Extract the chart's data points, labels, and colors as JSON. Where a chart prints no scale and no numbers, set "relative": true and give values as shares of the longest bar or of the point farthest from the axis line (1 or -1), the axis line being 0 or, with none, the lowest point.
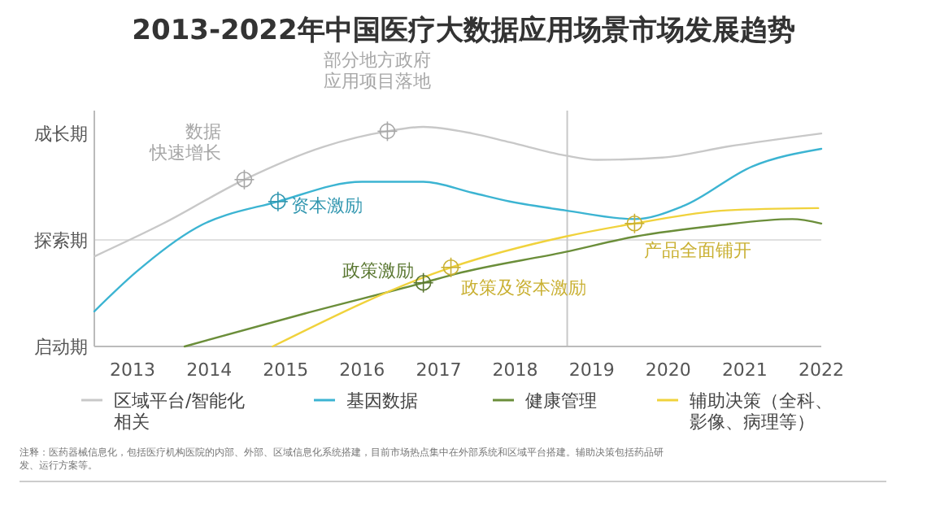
{
  "chart_data": {
    "type": "line",
    "title": "2013-2022年中国医疗大数据应用场景市场发展趋势",
    "xlim": [
      2012.5,
      2022
    ],
    "xticks": [
      2013,
      2014,
      2015,
      2016,
      2017,
      2018,
      2019,
      2020,
      2021,
      2022
    ],
    "relative": true,
    "legend": "bottom",
    "series": [
      {
        "name": "区域平台/智能化相关",
        "color": "#c8c8c8",
        "x": [
          2012.5,
          2013.4,
          2014.46,
          2015.5,
          2016.33,
          2016.8,
          2017.44,
          2017.93,
          2018.65,
          2019.07,
          2019.92,
          2020.77,
          2022
        ],
        "values": [
          0.41,
          0.56,
          0.76,
          0.91,
          0.98,
          1,
          0.97,
          0.93,
          0.87,
          0.85,
          0.86,
          0.91,
          0.97
        ]
      },
      {
        "name": "基因数据",
        "color": "#3cb4d2",
        "x": [
          2012.5,
          2013.05,
          2013.83,
          2014.9,
          2016.0,
          2016.8,
          2017.44,
          2017.93,
          2018.65,
          2019.56,
          2020.2,
          2021.1,
          2022
        ],
        "values": [
          0.16,
          0.34,
          0.54,
          0.66,
          0.75,
          0.75,
          0.7,
          0.66,
          0.62,
          0.58,
          0.64,
          0.82,
          0.9
        ]
      },
      {
        "name": "健康管理",
        "color": "#6b8e3a",
        "x": [
          2013.68,
          2015.25,
          2016.8,
          2017.22,
          2018.65,
          2019.56,
          2020.62,
          2021.62,
          2022
        ],
        "values": [
          0,
          0.15,
          0.29,
          0.33,
          0.43,
          0.5,
          0.55,
          0.58,
          0.56
        ]
      },
      {
        "name": "辅助决策（全科、影像、病理等）",
        "color": "#f0d23c",
        "x": [
          2014.83,
          2017.16,
          2018.65,
          2019.56,
          2020.77,
          2021.96
        ],
        "values": [
          0,
          0.36,
          0.5,
          0.56,
          0.62,
          0.63
        ]
      }
    ],
    "ref_lines": [
      {
        "axis": "y",
        "value": 0.485,
        "color": "#e0e0e0"
      },
      {
        "axis": "x",
        "value": 2018.68,
        "color": "#c8c8c8"
      }
    ],
    "annotations": [
      {
        "text": "数据快速增长",
        "x": 2014.46,
        "y": 0.76
      },
      {
        "text": "部分地方政府应用项目落地",
        "x": 2016.33,
        "y": 0.98
      },
      {
        "text": "资本激励",
        "x": 2014.9,
        "y": 0.66
      },
      {
        "text": "政策激励",
        "x": 2016.8,
        "y": 0.29
      },
      {
        "text": "政策及资本激励",
        "x": 2017.16,
        "y": 0.36
      },
      {
        "text": "产品全面铺开",
        "x": 2019.56,
        "y": 0.56
      },
      "启动期",
      "探索期",
      "成长期",
      "注释：医药器械信息化，包括医疗机构医院的内部、外部、区域信息化系统搭建，目前市场热点集中在外部系统和区域平台搭建。辅助决策包括药品研发、运行方案等。"
    ]
  }
}
